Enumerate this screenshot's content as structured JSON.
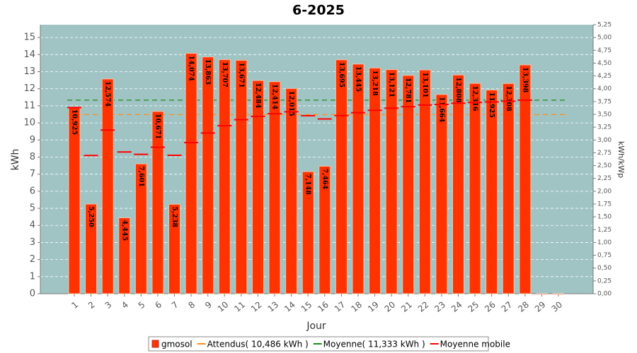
{
  "chart_data": {
    "type": "bar",
    "title": "6-2025",
    "x_label": "Jour",
    "y_label": "kWh",
    "y2_label": "kWh/kWp",
    "categories": [
      "1",
      "2",
      "3",
      "4",
      "5",
      "6",
      "7",
      "8",
      "9",
      "10",
      "11",
      "12",
      "13",
      "14",
      "15",
      "16",
      "17",
      "18",
      "19",
      "20",
      "21",
      "22",
      "23",
      "24",
      "25",
      "26",
      "27",
      "28",
      "29",
      "30"
    ],
    "series": [
      {
        "name": "gmosol",
        "color": "#ff3300",
        "values": [
          10.925,
          5.25,
          12.574,
          4.445,
          7.601,
          10.671,
          5.238,
          14.074,
          13.863,
          13.707,
          13.671,
          12.484,
          12.414,
          12.015,
          7.148,
          7.464,
          13.695,
          13.445,
          13.218,
          13.121,
          12.781,
          13.101,
          11.664,
          12.808,
          12.316,
          11.925,
          12.308,
          13.398,
          0,
          0
        ],
        "value_labels": [
          "10,925",
          "5,250",
          "12,574",
          "4,445",
          "7,601",
          "10,671",
          "5,238",
          "14,074",
          "13,863",
          "13,707",
          "13,671",
          "12,484",
          "12,414",
          "12,015",
          "7,148",
          "7,464",
          "13,695",
          "13,445",
          "13,218",
          "13,121",
          "12,781",
          "13,101",
          "11,664",
          "12,808",
          "12,316",
          "11,925",
          "12,308",
          "13,398",
          null,
          null
        ]
      },
      {
        "name": "Moyenne mobile",
        "color": "#ff0000",
        "values": [
          10.9,
          8.09,
          9.58,
          8.3,
          8.16,
          8.58,
          8.1,
          8.85,
          9.41,
          9.84,
          10.19,
          10.38,
          10.54,
          10.65,
          10.42,
          10.23,
          10.43,
          10.6,
          10.74,
          10.86,
          10.95,
          11.05,
          11.08,
          11.15,
          11.2,
          11.23,
          11.27,
          11.33,
          null,
          null
        ]
      }
    ],
    "reference_lines": [
      {
        "name": "Attendus( 10,486 kWh )",
        "value": 10.486,
        "color": "#ff8c1a"
      },
      {
        "name": "Moyenne( 11,333 kWh )",
        "value": 11.333,
        "color": "#1a8c1a"
      }
    ],
    "ylim": [
      0,
      15.75
    ],
    "yticks": [
      0,
      1,
      2,
      3,
      4,
      5,
      6,
      7,
      8,
      9,
      10,
      11,
      12,
      13,
      14,
      15
    ],
    "y2lim": [
      0,
      5.25
    ],
    "y2ticks": [
      {
        "value": 0,
        "label": "0,00"
      },
      {
        "value": 0.25,
        "label": "0,25"
      },
      {
        "value": 0.5,
        "label": "0,50"
      },
      {
        "value": 0.75,
        "label": "0,75"
      },
      {
        "value": 1,
        "label": "1,00"
      },
      {
        "value": 1.25,
        "label": "1,25"
      },
      {
        "value": 1.5,
        "label": "1,50"
      },
      {
        "value": 1.75,
        "label": "1,75"
      },
      {
        "value": 2,
        "label": "2,00"
      },
      {
        "value": 2.25,
        "label": "2,25"
      },
      {
        "value": 2.5,
        "label": "2,50"
      },
      {
        "value": 2.75,
        "label": "2,75"
      },
      {
        "value": 3,
        "label": "3,00"
      },
      {
        "value": 3.25,
        "label": "3,25"
      },
      {
        "value": 3.5,
        "label": "3,50"
      },
      {
        "value": 3.75,
        "label": "3,75"
      },
      {
        "value": 4,
        "label": "4,00"
      },
      {
        "value": 4.25,
        "label": "4,25"
      },
      {
        "value": 4.5,
        "label": "4,50"
      },
      {
        "value": 4.75,
        "label": "4,75"
      },
      {
        "value": 5,
        "label": "5,00"
      },
      {
        "value": 5.25,
        "label": "5,25"
      }
    ],
    "grid": true
  }
}
